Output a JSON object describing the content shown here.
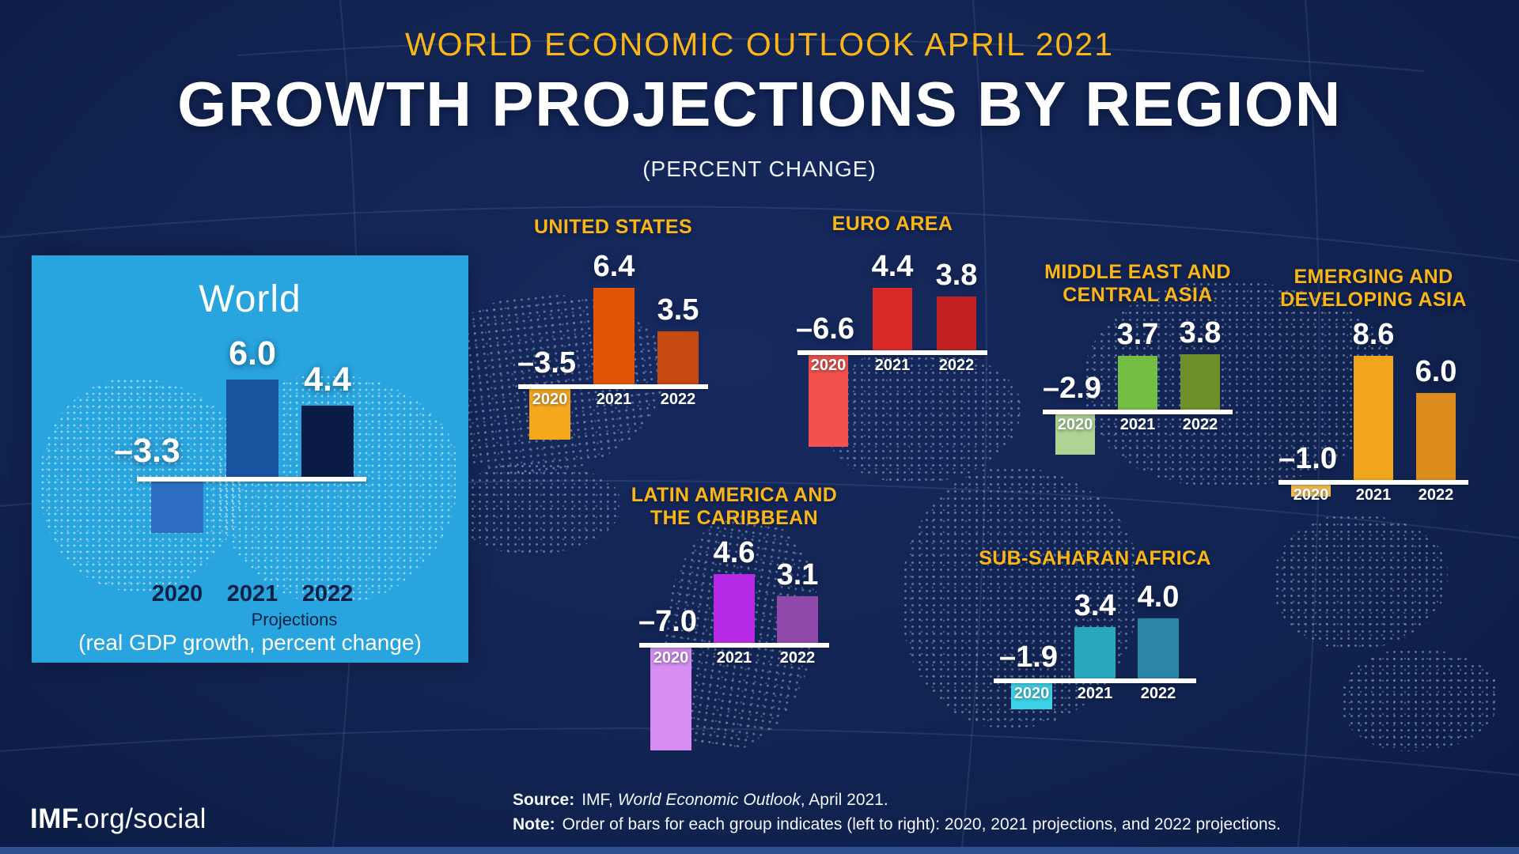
{
  "header": {
    "kicker": "WORLD ECONOMIC OUTLOOK APRIL 2021",
    "title": "GROWTH PROJECTIONS BY REGION",
    "subtitle": "(PERCENT CHANGE)"
  },
  "world_panel": {
    "title": "World",
    "years": [
      "2020",
      "2021",
      "2022"
    ],
    "projections_label": "Projections",
    "caption": "(real GDP growth, percent change)"
  },
  "chart_data": [
    {
      "id": "world",
      "type": "bar",
      "title": "World",
      "categories": [
        "2020",
        "2021",
        "2022"
      ],
      "values": [
        -3.3,
        6.0,
        4.4
      ],
      "value_labels": [
        "–3.3",
        "6.0",
        "4.4"
      ],
      "bar_colors": [
        "#2e6fc4",
        "#17539f",
        "#0a1c45"
      ],
      "baseline": 0,
      "grid": false,
      "note": "(real GDP growth, percent change)",
      "annotations": [
        "Projections"
      ]
    },
    {
      "id": "united-states",
      "type": "bar",
      "title": "UNITED STATES",
      "title_lines": [
        "UNITED STATES"
      ],
      "categories": [
        "2020",
        "2021",
        "2022"
      ],
      "values": [
        -3.5,
        6.4,
        3.5
      ],
      "value_labels": [
        "–3.5",
        "6.4",
        "3.5"
      ],
      "bar_colors": [
        "#f6a81c",
        "#e25408",
        "#c6490f"
      ],
      "baseline": 0,
      "grid": false
    },
    {
      "id": "euro-area",
      "type": "bar",
      "title": "EURO AREA",
      "title_lines": [
        "EURO AREA"
      ],
      "categories": [
        "2020",
        "2021",
        "2022"
      ],
      "values": [
        -6.6,
        4.4,
        3.8
      ],
      "value_labels": [
        "–6.6",
        "4.4",
        "3.8"
      ],
      "bar_colors": [
        "#f2524b",
        "#da2a28",
        "#c32220"
      ],
      "baseline": 0,
      "grid": false
    },
    {
      "id": "middle-east-and-central-asia",
      "type": "bar",
      "title": "MIDDLE EAST AND CENTRAL ASIA",
      "title_lines": [
        "MIDDLE EAST AND",
        "CENTRAL ASIA"
      ],
      "categories": [
        "2020",
        "2021",
        "2022"
      ],
      "values": [
        -2.9,
        3.7,
        3.8
      ],
      "value_labels": [
        "–2.9",
        "3.7",
        "3.8"
      ],
      "bar_colors": [
        "#aed392",
        "#74be44",
        "#6f8f2b"
      ],
      "baseline": 0,
      "grid": false
    },
    {
      "id": "emerging-and-developing-asia",
      "type": "bar",
      "title": "EMERGING AND DEVELOPING ASIA",
      "title_lines": [
        "EMERGING AND",
        "DEVELOPING ASIA"
      ],
      "categories": [
        "2020",
        "2021",
        "2022"
      ],
      "values": [
        -1.0,
        8.6,
        6.0
      ],
      "value_labels": [
        "–1.0",
        "8.6",
        "6.0"
      ],
      "bar_colors": [
        "#f6c155",
        "#f1a51d",
        "#dd8d1e"
      ],
      "baseline": 0,
      "grid": false
    },
    {
      "id": "latin-america-and-the-caribbean",
      "type": "bar",
      "title": "LATIN AMERICA AND THE CARIBBEAN",
      "title_lines": [
        "LATIN AMERICA AND",
        "THE CARIBBEAN"
      ],
      "categories": [
        "2020",
        "2021",
        "2022"
      ],
      "values": [
        -7.0,
        4.6,
        3.1
      ],
      "value_labels": [
        "–7.0",
        "4.6",
        "3.1"
      ],
      "bar_colors": [
        "#d78df2",
        "#b62ae6",
        "#9049ab"
      ],
      "baseline": 0,
      "grid": false
    },
    {
      "id": "sub-saharan-africa",
      "type": "bar",
      "title": "SUB-SAHARAN AFRICA",
      "title_lines": [
        "SUB-SAHARAN AFRICA"
      ],
      "categories": [
        "2020",
        "2021",
        "2022"
      ],
      "values": [
        -1.9,
        3.4,
        4.0
      ],
      "value_labels": [
        "–1.9",
        "3.4",
        "4.0"
      ],
      "bar_colors": [
        "#3ed3e8",
        "#29a8bd",
        "#2b85a5"
      ],
      "baseline": 0,
      "grid": false
    }
  ],
  "footer": {
    "source_label": "Source:",
    "source_pre": "IMF, ",
    "source_italic": "World Economic Outlook",
    "source_post": ", April 2021.",
    "note_label": "Note:",
    "note_text": "Order of bars for each group indicates (left to right): 2020, 2021 projections, and 2022 projections.",
    "brand_bold": "IMF.",
    "brand_rest": "org/social"
  },
  "colors": {
    "accent_gold": "#fbb616",
    "panel_blue": "#28a4de",
    "world_year_text": "#0a2145",
    "bottom_strip": "#2d5192",
    "baseline_white": "#ffffff"
  }
}
